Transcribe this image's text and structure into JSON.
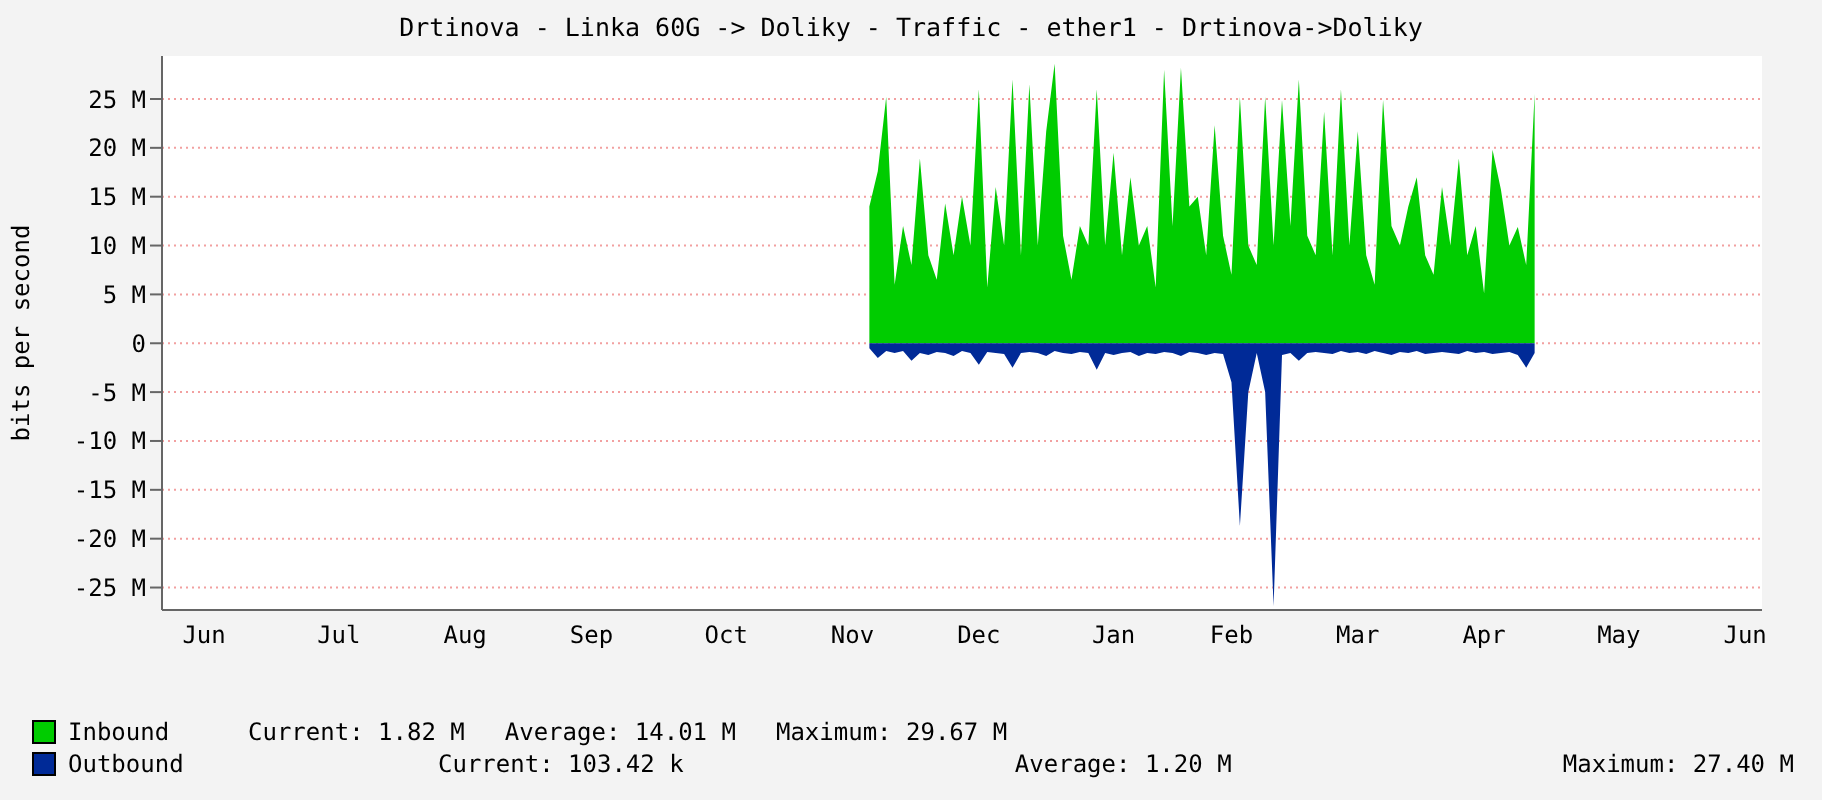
{
  "chart_data": {
    "type": "area",
    "title": "Drtinova - Linka 60G -> Doliky - Traffic - ether1 - Drtinova->Doliky",
    "ylabel": "bits per second",
    "categories": [
      null,
      null,
      null,
      null,
      null,
      "Jun",
      null,
      null,
      null,
      null,
      null,
      null,
      null,
      null,
      null,
      null,
      null,
      null,
      null,
      null,
      null,
      "Jul",
      null,
      null,
      null,
      null,
      null,
      null,
      null,
      null,
      null,
      null,
      null,
      null,
      null,
      null,
      "Aug",
      null,
      null,
      null,
      null,
      null,
      null,
      null,
      null,
      null,
      null,
      null,
      null,
      null,
      null,
      "Sep",
      null,
      null,
      null,
      null,
      null,
      null,
      null,
      null,
      null,
      null,
      null,
      null,
      null,
      null,
      null,
      "Oct",
      null,
      null,
      null,
      null,
      null,
      null,
      null,
      null,
      null,
      null,
      null,
      null,
      null,
      null,
      "Nov",
      null,
      null,
      null,
      null,
      null,
      null,
      null,
      null,
      null,
      null,
      null,
      null,
      null,
      null,
      "Dec",
      null,
      null,
      null,
      null,
      null,
      null,
      null,
      null,
      null,
      null,
      null,
      null,
      null,
      null,
      null,
      "Jan",
      null,
      null,
      null,
      null,
      null,
      null,
      null,
      null,
      null,
      null,
      null,
      null,
      null,
      "Feb",
      null,
      null,
      null,
      null,
      null,
      null,
      null,
      null,
      null,
      null,
      null,
      null,
      null,
      null,
      "Mar",
      null,
      null,
      null,
      null,
      null,
      null,
      null,
      null,
      null,
      null,
      null,
      null,
      null,
      null,
      "Apr",
      null,
      null,
      null,
      null,
      null,
      null,
      null,
      null,
      null,
      null,
      null,
      null,
      null,
      null,
      null,
      "May",
      null,
      null,
      null,
      null,
      null,
      null,
      null,
      null,
      null,
      null,
      null,
      null,
      null,
      null,
      "Jun",
      null,
      null
    ],
    "ylim": [
      -27.3,
      29.4
    ],
    "yticks": [
      {
        "value": -25,
        "label": "-25 M"
      },
      {
        "value": -20,
        "label": "-20 M"
      },
      {
        "value": -15,
        "label": "-15 M"
      },
      {
        "value": -10,
        "label": "-10 M"
      },
      {
        "value": -5,
        "label": "-5 M"
      },
      {
        "value": 0,
        "label": "0"
      },
      {
        "value": 5,
        "label": "5 M"
      },
      {
        "value": 10,
        "label": "10 M"
      },
      {
        "value": 15,
        "label": "15 M"
      },
      {
        "value": 20,
        "label": "20 M"
      },
      {
        "value": 25,
        "label": "25 M"
      }
    ],
    "grid": "y",
    "legend": "bottom",
    "annotations": [
      "Current: 1.82 M",
      "Average: 14.01 M",
      "Maximum: 29.67 M",
      "Current: 103.42 k",
      "Average: 1.20 M",
      "Maximum: 27.40 M"
    ],
    "series": [
      {
        "name": "Inbound",
        "color": "#00cc00",
        "values": [
          null,
          null,
          null,
          null,
          null,
          null,
          null,
          null,
          null,
          null,
          null,
          null,
          null,
          null,
          null,
          null,
          null,
          null,
          null,
          null,
          null,
          null,
          null,
          null,
          null,
          null,
          null,
          null,
          null,
          null,
          null,
          null,
          null,
          null,
          null,
          null,
          null,
          null,
          null,
          null,
          null,
          null,
          null,
          null,
          null,
          null,
          null,
          null,
          null,
          null,
          null,
          null,
          null,
          null,
          null,
          null,
          null,
          null,
          null,
          null,
          null,
          null,
          null,
          null,
          null,
          null,
          null,
          null,
          null,
          null,
          null,
          null,
          null,
          null,
          null,
          null,
          null,
          null,
          null,
          null,
          null,
          null,
          null,
          null,
          14,
          17.6,
          25.2,
          6,
          12,
          8,
          18.9,
          9,
          6.5,
          14.3,
          9,
          15,
          10,
          26,
          5.7,
          16,
          10,
          27,
          9,
          26.5,
          10,
          21.7,
          28.6,
          11,
          6.5,
          12,
          10,
          26,
          10,
          19.5,
          9,
          17,
          10,
          12,
          5.7,
          28,
          12,
          28.2,
          14,
          15,
          9,
          22.3,
          11,
          7,
          25.2,
          10,
          8,
          25.2,
          10,
          24.9,
          12,
          27,
          11,
          9,
          23.7,
          9,
          26,
          10,
          21.7,
          9,
          6,
          24.9,
          12,
          10,
          14,
          17,
          9,
          7,
          16,
          10,
          18.9,
          9,
          12,
          5.1,
          19.8,
          15.7,
          10,
          11.9,
          8,
          25.5,
          null,
          null,
          null,
          null,
          null,
          null,
          null,
          null,
          null,
          null,
          null,
          null,
          null,
          null,
          null,
          null,
          null,
          null,
          null,
          null,
          null,
          null,
          null,
          null,
          null,
          null,
          null
        ]
      },
      {
        "name": "Outbound",
        "color": "#002a97",
        "values": [
          null,
          null,
          null,
          null,
          null,
          null,
          null,
          null,
          null,
          null,
          null,
          null,
          null,
          null,
          null,
          null,
          null,
          null,
          null,
          null,
          null,
          null,
          null,
          null,
          null,
          null,
          null,
          null,
          null,
          null,
          null,
          null,
          null,
          null,
          null,
          null,
          null,
          null,
          null,
          null,
          null,
          null,
          null,
          null,
          null,
          null,
          null,
          null,
          null,
          null,
          null,
          null,
          null,
          null,
          null,
          null,
          null,
          null,
          null,
          null,
          null,
          null,
          null,
          null,
          null,
          null,
          null,
          null,
          null,
          null,
          null,
          null,
          null,
          null,
          null,
          null,
          null,
          null,
          null,
          null,
          null,
          null,
          null,
          null,
          -0.5,
          -1.5,
          -0.8,
          -1,
          -0.8,
          -1.8,
          -1,
          -1.2,
          -0.9,
          -1,
          -1.3,
          -0.8,
          -1,
          -2.2,
          -0.9,
          -1,
          -1.1,
          -2.5,
          -1,
          -0.9,
          -1,
          -1.3,
          -0.8,
          -1,
          -1.1,
          -0.9,
          -1,
          -2.7,
          -1,
          -1.2,
          -1,
          -0.9,
          -1.3,
          -1,
          -1.1,
          -0.9,
          -1,
          -1.3,
          -0.9,
          -1,
          -1.2,
          -1,
          -1.1,
          -4,
          -18.7,
          -5,
          -1,
          -5,
          -26.9,
          -1.2,
          -1,
          -1.8,
          -1,
          -0.9,
          -1,
          -1.1,
          -0.8,
          -1,
          -0.9,
          -1.1,
          -0.8,
          -1,
          -1.2,
          -0.9,
          -1,
          -0.8,
          -1.1,
          -1,
          -0.9,
          -1,
          -1.1,
          -0.8,
          -1,
          -0.9,
          -1.1,
          -1,
          -0.9,
          -1.2,
          -2.5,
          -1,
          null,
          null,
          null,
          null,
          null,
          null,
          null,
          null,
          null,
          null,
          null,
          null,
          null,
          null,
          null,
          null,
          null,
          null,
          null,
          null,
          null,
          null,
          null,
          null,
          null,
          null,
          null
        ]
      }
    ]
  }
}
